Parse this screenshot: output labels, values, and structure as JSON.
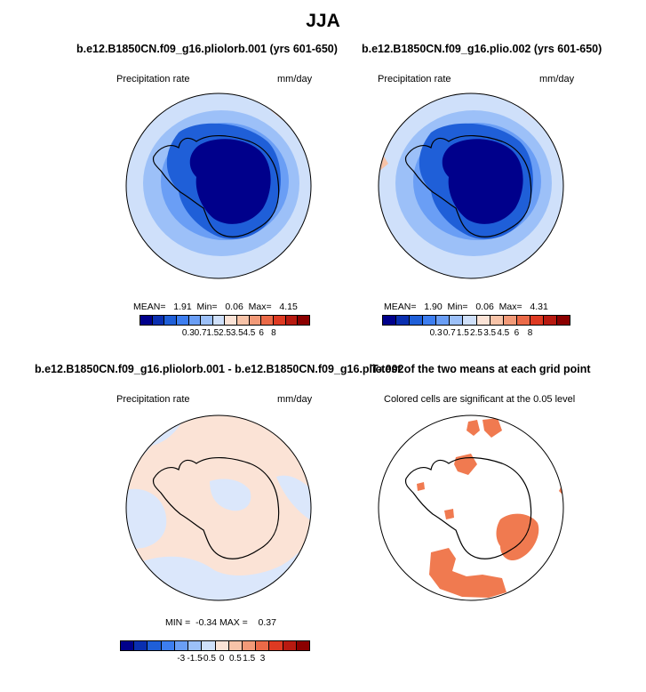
{
  "figure": {
    "title": "JJA"
  },
  "panels": [
    {
      "id": "p1",
      "title": "b.e12.B1850CN.f09_g16.pliolorb.001 (yrs 601-650)",
      "left_label": "Precipitation rate",
      "right_label": "mm/day",
      "stats": {
        "mean_label": "MEAN=",
        "mean": "1.91",
        "min_label": "Min=",
        "min": "0.06",
        "max_label": "Max=",
        "max": "4.15"
      },
      "colorbar_ticks": [
        "0.3",
        "0.7",
        "1.5",
        "2.5",
        "3.5",
        "4.5",
        "6",
        "8"
      ]
    },
    {
      "id": "p2",
      "title": "b.e12.B1850CN.f09_g16.plio.002 (yrs 601-650)",
      "left_label": "Precipitation rate",
      "right_label": "mm/day",
      "stats": {
        "mean_label": "MEAN=",
        "mean": "1.90",
        "min_label": "Min=",
        "min": "0.06",
        "max_label": "Max=",
        "max": "4.31"
      },
      "colorbar_ticks": [
        "0.3",
        "0.7",
        "1.5",
        "2.5",
        "3.5",
        "4.5",
        "6",
        "8"
      ]
    },
    {
      "id": "p3",
      "title": "b.e12.B1850CN.f09_g16.pliolorb.001 - b.e12.B1850CN.f09_g16.plio.002",
      "left_label": "Precipitation rate",
      "right_label": "mm/day",
      "stats": {
        "min_label": "MIN =",
        "min": "-0.34",
        "max_label": "MAX =",
        "max": "0.37"
      },
      "colorbar_ticks": [
        "-3",
        "-1.5",
        "-0.5",
        "0",
        "0.5",
        "1.5",
        "3"
      ]
    },
    {
      "id": "p4",
      "title": "T-test of the two means at each grid point",
      "left_label": "Colored cells are significant at the 0.05 level"
    }
  ],
  "colorbar_colors": {
    "precip": [
      "#00008b",
      "#0a2fb0",
      "#1f5fd8",
      "#3d7ef0",
      "#6a9ef5",
      "#9cc0f8",
      "#cfe0fa",
      "#fbe3d6",
      "#f7c3a8",
      "#f29a78",
      "#eb6a48",
      "#de3a22",
      "#b81a10",
      "#8b0000"
    ],
    "diff": [
      "#00008b",
      "#0a2fb0",
      "#1f5fd8",
      "#3d7ef0",
      "#6a9ef5",
      "#9cc0f8",
      "#cfe0fa",
      "#fbe3d6",
      "#f7c3a8",
      "#f29a78",
      "#eb6a48",
      "#de3a22",
      "#b81a10",
      "#8b0000"
    ]
  },
  "map_colors": {
    "ocean_light": "#cfe0fa",
    "ring_mid": "#9cc0f8",
    "ring_blue": "#6a9ef5",
    "ring_deep": "#1f5fd8",
    "continent_dark": "#00008b",
    "warm_patch": "#f7c3a8",
    "diff_pos": "#fbe3d6",
    "diff_neg": "#dbe7fb",
    "signif": "#f07a50"
  }
}
